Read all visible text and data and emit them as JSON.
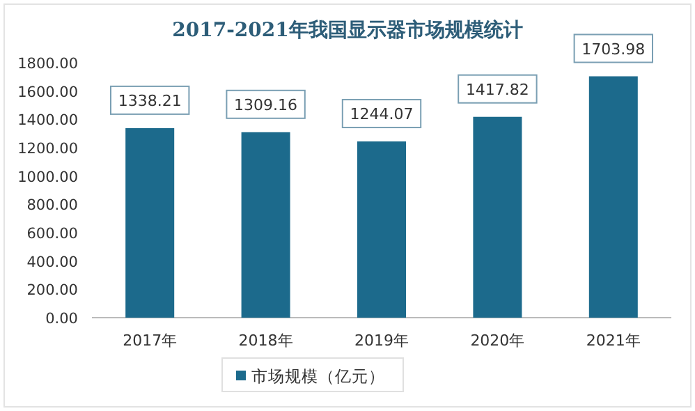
{
  "chart_data": {
    "type": "bar",
    "title": "2017-2021年我国显示器市场规模统计",
    "categories": [
      "2017年",
      "2018年",
      "2019年",
      "2020年",
      "2021年"
    ],
    "series": [
      {
        "name": "市场规模（亿元）",
        "color": "#1c6a8c",
        "values": [
          1338.21,
          1309.16,
          1244.07,
          1417.82,
          1703.98
        ]
      }
    ],
    "ylim": [
      0,
      1800
    ],
    "yticks": [
      {
        "value": 0,
        "label": "0.00"
      },
      {
        "value": 200,
        "label": "200.00"
      },
      {
        "value": 400,
        "label": "400.00"
      },
      {
        "value": 600,
        "label": "600.00"
      },
      {
        "value": 800,
        "label": "800.00"
      },
      {
        "value": 1000,
        "label": "1000.00"
      },
      {
        "value": 1200,
        "label": "1200.00"
      },
      {
        "value": 1400,
        "label": "1400.00"
      },
      {
        "value": 1600,
        "label": "1600.00"
      },
      {
        "value": 1800,
        "label": "1800.00"
      }
    ],
    "data_labels": true,
    "legend": "bottom"
  }
}
